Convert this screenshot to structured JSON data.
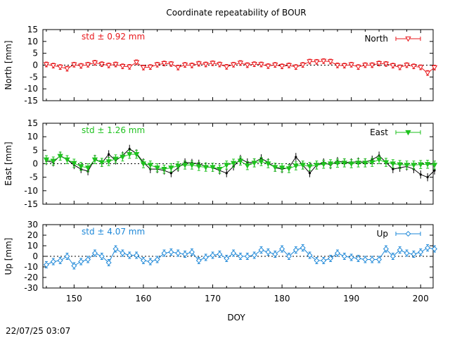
{
  "chart_data": {
    "type": "line",
    "title": "Coordinate repeatability of BOUR",
    "xlabel": "DOY",
    "xlim": [
      145.5,
      201.8
    ],
    "xticks": [
      150,
      160,
      170,
      180,
      190,
      200
    ],
    "timestamp": "22/07/25 03:07",
    "panels": [
      {
        "id": "north",
        "ylabel": "North [mm]",
        "ylim": [
          -15,
          15
        ],
        "yticks": [
          -15,
          -10,
          -5,
          0,
          5,
          10,
          15
        ],
        "std_label": "std ± 0.92 mm",
        "legend": "North",
        "color": "#e8181c",
        "marker": "triangle-down-open",
        "x": [
          146,
          147,
          148,
          149,
          150,
          151,
          152,
          153,
          154,
          155,
          156,
          157,
          158,
          159,
          160,
          161,
          162,
          163,
          164,
          165,
          166,
          167,
          168,
          169,
          170,
          171,
          172,
          173,
          174,
          175,
          176,
          177,
          178,
          179,
          180,
          181,
          182,
          183,
          184,
          185,
          186,
          187,
          188,
          189,
          190,
          191,
          192,
          193,
          194,
          195,
          196,
          197,
          198,
          199,
          200,
          201,
          202
        ],
        "y": [
          0.3,
          -0.2,
          -0.8,
          -1.5,
          0.2,
          -0.3,
          0.2,
          1.0,
          0.4,
          -0.1,
          0.3,
          -0.5,
          -0.7,
          1.2,
          -1.0,
          -0.8,
          0.2,
          0.7,
          0.5,
          -1.0,
          0.1,
          -0.1,
          0.6,
          0.3,
          0.8,
          0.3,
          -0.7,
          0.2,
          0.9,
          0.0,
          0.4,
          0.3,
          -0.4,
          0.1,
          -0.5,
          -0.1,
          -0.8,
          0.1,
          1.5,
          1.4,
          1.7,
          1.5,
          -0.1,
          -0.2,
          0.2,
          -0.8,
          0.0,
          0.0,
          0.7,
          0.5,
          -0.2,
          -0.9,
          0.0,
          -0.5,
          -0.9,
          -3.3,
          -1.0
        ],
        "err": 1.0
      },
      {
        "id": "east",
        "ylabel": "East [mm]",
        "ylim": [
          -15,
          15
        ],
        "yticks": [
          -15,
          -10,
          -5,
          0,
          5,
          10,
          15
        ],
        "std_label": "std ± 1.26 mm",
        "legend": "East",
        "color": "#1ec21e",
        "marker": "triangle-down-filled",
        "x": [
          146,
          147,
          148,
          149,
          150,
          151,
          152,
          153,
          154,
          155,
          156,
          157,
          158,
          159,
          160,
          161,
          162,
          163,
          164,
          165,
          166,
          167,
          168,
          169,
          170,
          171,
          172,
          173,
          174,
          175,
          176,
          177,
          178,
          179,
          180,
          181,
          182,
          183,
          184,
          185,
          186,
          187,
          188,
          189,
          190,
          191,
          192,
          193,
          194,
          195,
          196,
          197,
          198,
          199,
          200,
          201,
          202
        ],
        "y": [
          1.5,
          1.0,
          2.8,
          1.5,
          0.2,
          -1.0,
          -1.5,
          1.5,
          0.5,
          0.8,
          1.8,
          2.5,
          3.5,
          3.5,
          0.0,
          -0.5,
          -1.5,
          -2.0,
          -1.5,
          -0.8,
          -0.5,
          -0.5,
          -1.0,
          -1.3,
          -1.3,
          -2.0,
          -0.5,
          0.2,
          1.0,
          -0.7,
          0.3,
          0.8,
          0.0,
          -1.3,
          -1.5,
          -1.8,
          -0.8,
          -0.5,
          -1.0,
          -0.5,
          -0.2,
          0.0,
          0.2,
          0.3,
          0.0,
          0.3,
          0.3,
          0.5,
          1.5,
          0.5,
          0.0,
          -0.3,
          -0.5,
          -0.5,
          -0.3,
          -0.2,
          -0.5
        ],
        "y_raw": [
          1.0,
          0.5,
          3.0,
          1.5,
          -0.5,
          -2.0,
          -2.8,
          1.8,
          0.3,
          3.5,
          1.2,
          3.0,
          5.5,
          3.8,
          0.5,
          -2.0,
          -2.0,
          -2.5,
          -3.5,
          -1.5,
          0.5,
          0.3,
          0.0,
          -1.0,
          -1.5,
          -2.5,
          -3.5,
          -1.0,
          1.8,
          0.5,
          0.5,
          2.0,
          0.5,
          -1.5,
          -2.0,
          -1.5,
          2.5,
          -0.5,
          -3.5,
          -0.5,
          0.5,
          -0.5,
          1.0,
          0.5,
          0.5,
          0.8,
          0.5,
          1.5,
          3.0,
          0.5,
          -2.0,
          -1.5,
          -1.0,
          -2.0,
          -4.0,
          -5.0,
          -2.5
        ],
        "err": 1.5
      },
      {
        "id": "up",
        "ylabel": "Up [mm]",
        "ylim": [
          -30,
          30
        ],
        "yticks": [
          -30,
          -20,
          -10,
          0,
          10,
          20,
          30
        ],
        "std_label": "std ± 4.07 mm",
        "legend": "Up",
        "color": "#1e88d8",
        "marker": "diamond-open",
        "x": [
          146,
          147,
          148,
          149,
          150,
          151,
          152,
          153,
          154,
          155,
          156,
          157,
          158,
          159,
          160,
          161,
          162,
          163,
          164,
          165,
          166,
          167,
          168,
          169,
          170,
          171,
          172,
          173,
          174,
          175,
          176,
          177,
          178,
          179,
          180,
          181,
          182,
          183,
          184,
          185,
          186,
          187,
          188,
          189,
          190,
          191,
          192,
          193,
          194,
          195,
          196,
          197,
          198,
          199,
          200,
          201,
          202
        ],
        "y": [
          -8,
          -5,
          -4,
          0,
          -9,
          -5,
          -3,
          3,
          0,
          -6,
          7,
          3,
          1,
          1,
          -4,
          -5,
          -3,
          3,
          4,
          3,
          2,
          4,
          -4,
          -1,
          1,
          2,
          -2,
          3,
          0,
          0,
          1,
          6,
          4,
          2,
          7,
          0,
          6,
          8,
          1,
          -4,
          -4,
          -2,
          3,
          0,
          -1,
          -2,
          -3,
          -3,
          -3,
          7,
          0,
          6,
          3,
          2,
          4,
          8,
          7
        ],
        "err": 3.0
      }
    ]
  }
}
